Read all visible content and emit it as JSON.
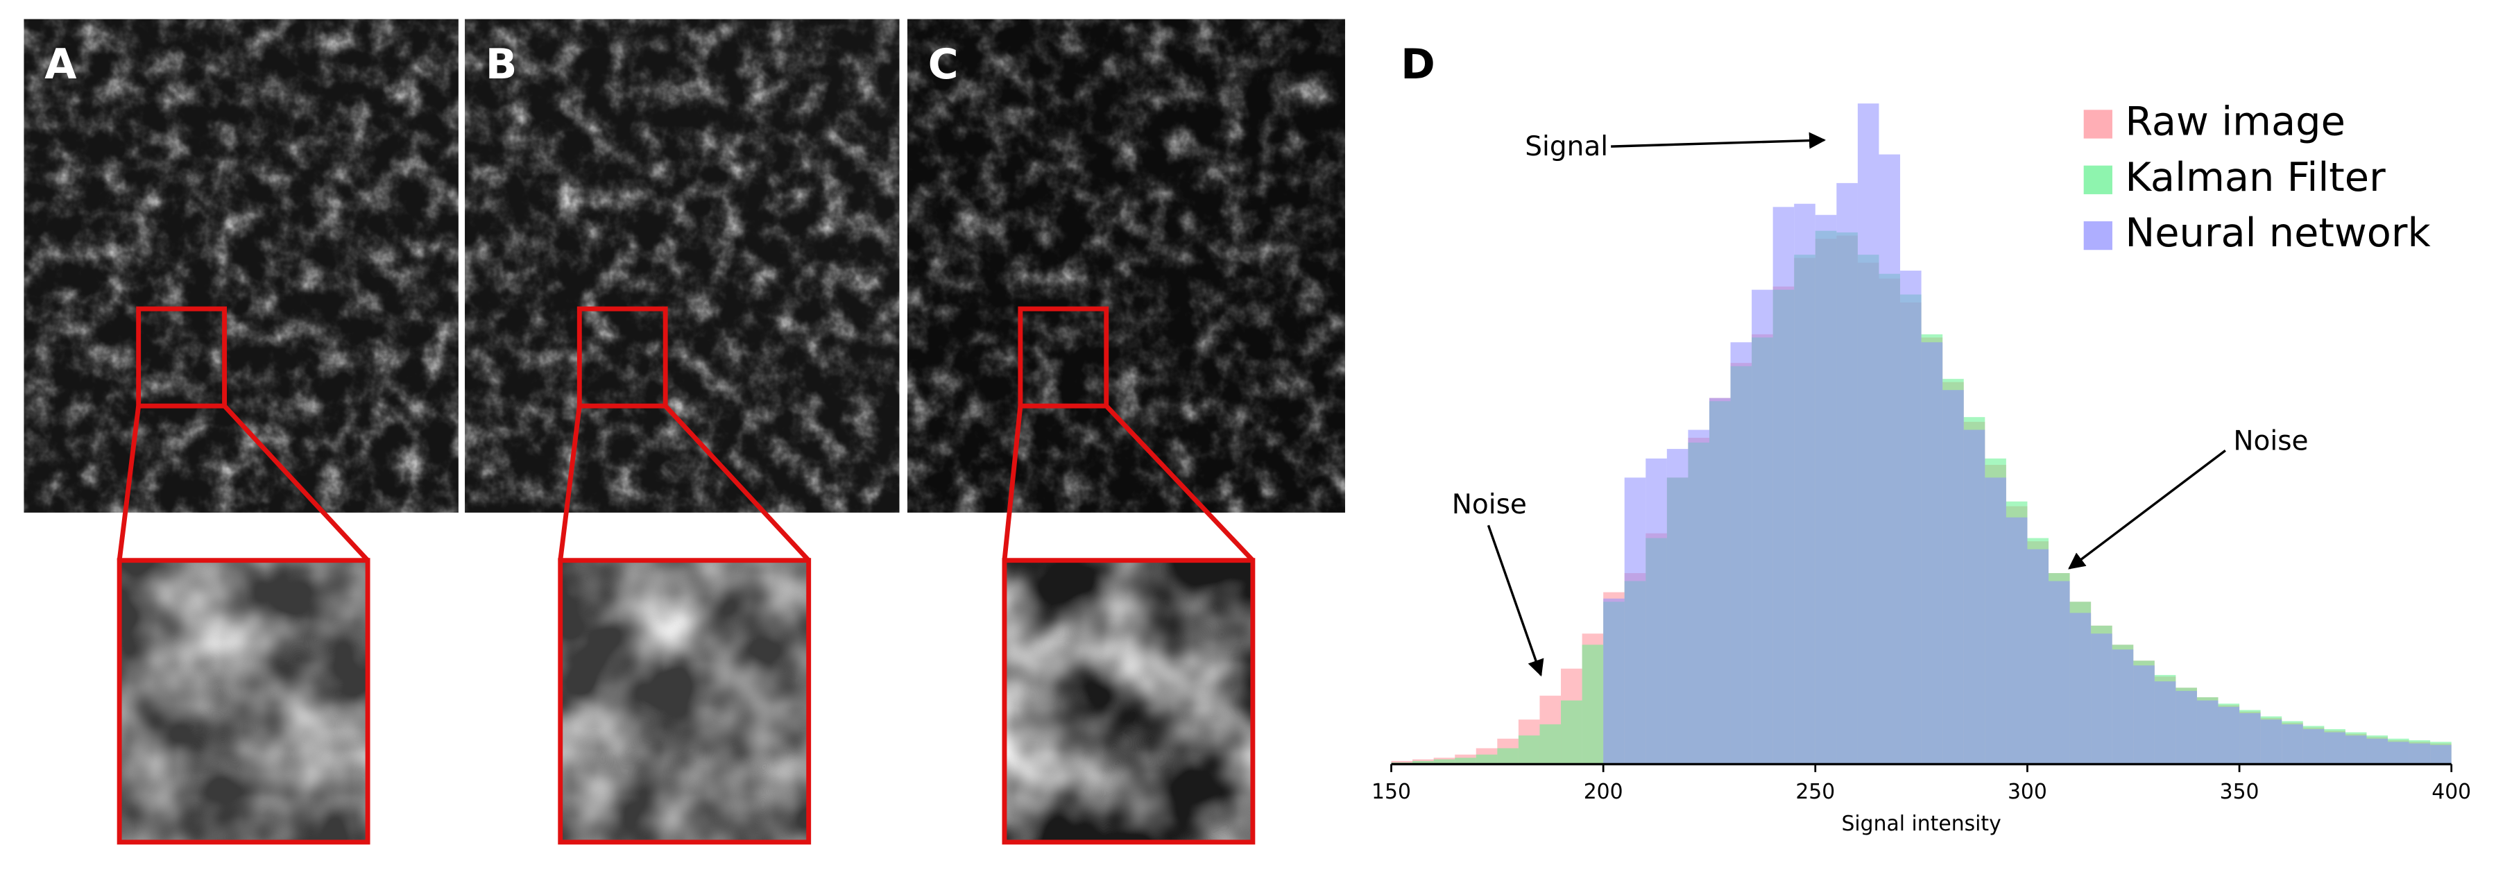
{
  "panels": [
    {
      "label": "A"
    },
    {
      "label": "B"
    },
    {
      "label": "C"
    }
  ],
  "chart_data": {
    "type": "histogram",
    "panel_label": "D",
    "xlabel": "Signal intensity",
    "annotations": [
      "Signal",
      "Noise",
      "Noise"
    ],
    "bins": [
      150,
      155,
      160,
      165,
      170,
      175,
      180,
      185,
      190,
      195,
      200,
      205,
      210,
      215,
      220,
      225,
      230,
      235,
      240,
      245,
      250,
      255,
      260,
      265,
      270,
      275,
      280,
      285,
      290,
      295,
      300,
      305,
      310,
      315,
      320,
      325,
      330,
      335,
      340,
      345,
      350,
      355,
      360,
      365,
      370,
      375,
      380,
      385,
      390,
      395,
      400
    ],
    "series": [
      {
        "name": "Raw image",
        "color": "#ff8c96",
        "values": [
          2,
          3,
          4,
          6,
          10,
          16,
          28,
          43,
          60,
          82,
          108,
          120,
          145,
          180,
          205,
          230,
          252,
          270,
          300,
          318,
          330,
          332,
          315,
          305,
          290,
          268,
          240,
          215,
          188,
          162,
          140,
          120,
          102,
          87,
          75,
          65,
          55,
          48,
          42,
          37,
          33,
          29,
          26,
          23,
          21,
          19,
          17,
          15,
          14,
          13
        ]
      },
      {
        "name": "Kalman Filter",
        "color": "#5ef08c",
        "values": [
          1,
          2,
          3,
          4,
          6,
          10,
          18,
          25,
          40,
          75,
          102,
          115,
          142,
          180,
          202,
          228,
          250,
          268,
          298,
          320,
          335,
          334,
          320,
          308,
          295,
          270,
          242,
          218,
          192,
          165,
          142,
          120,
          102,
          87,
          75,
          65,
          56,
          48,
          42,
          38,
          34,
          30,
          27,
          24,
          22,
          20,
          18,
          16,
          15,
          14
        ]
      },
      {
        "name": "Neural network",
        "color": "#8c8cff",
        "values": [
          0,
          0,
          0,
          0,
          0,
          0,
          0,
          0,
          0,
          0,
          104,
          180,
          192,
          198,
          210,
          230,
          265,
          298,
          350,
          352,
          345,
          365,
          415,
          383,
          310,
          265,
          235,
          210,
          180,
          155,
          135,
          115,
          95,
          82,
          72,
          62,
          52,
          46,
          40,
          36,
          32,
          28,
          25,
          22,
          20,
          18,
          16,
          14,
          13,
          12
        ]
      }
    ],
    "xlim": [
      150,
      400
    ],
    "xticks": [
      150,
      200,
      250,
      300,
      350,
      400
    ],
    "ylim": [
      0,
      420
    ],
    "legend": "upper right"
  }
}
